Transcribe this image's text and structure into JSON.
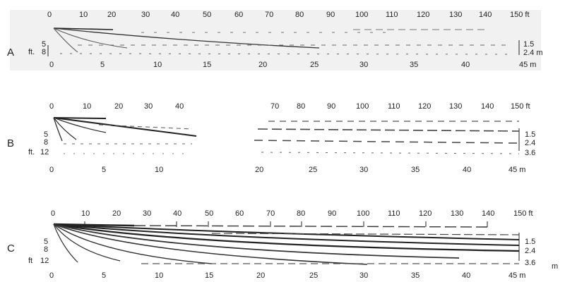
{
  "panels": [
    {
      "label": "A",
      "ft_ticks": [
        "0",
        "10",
        "20",
        "30",
        "40",
        "50",
        "60",
        "70",
        "80",
        "90",
        "100",
        "110",
        "120",
        "130",
        "140",
        "150 ft"
      ],
      "m_ticks": [
        "0",
        "5",
        "10",
        "15",
        "20",
        "25",
        "30",
        "35",
        "40",
        "45 m"
      ],
      "depth_ft": [
        "5",
        "8"
      ],
      "depth_ft_unit": "ft.",
      "depth_m": [
        "1.5",
        "2.4 m"
      ],
      "extent_m": 25,
      "depths_m": [
        1.5,
        2.4
      ]
    },
    {
      "label": "B",
      "ft_ticks": [
        "0",
        "10",
        "20",
        "30",
        "40",
        "70",
        "80",
        "90",
        "100",
        "110",
        "120",
        "130",
        "140",
        "150 ft"
      ],
      "m_ticks": [
        "0",
        "5",
        "10",
        "20",
        "25",
        "30",
        "35",
        "40",
        "45 m"
      ],
      "depth_ft": [
        "5",
        "8",
        "12"
      ],
      "depth_ft_unit": "ft.",
      "depth_m": [
        "1.5",
        "2.4",
        "3.6"
      ],
      "extent_m": 14,
      "depths_m": [
        1.5,
        2.4,
        3.6
      ]
    },
    {
      "label": "C",
      "ft_ticks": [
        "0",
        "10",
        "20",
        "30",
        "40",
        "50",
        "60",
        "70",
        "80",
        "90",
        "100",
        "110",
        "120",
        "130",
        "140",
        "150 ft"
      ],
      "m_ticks": [
        "0",
        "5",
        "10",
        "15",
        "20",
        "25",
        "30",
        "35",
        "40",
        "45 m"
      ],
      "depth_ft": [
        "5",
        "8",
        "12"
      ],
      "depth_ft_unit": "ft",
      "depth_m": [
        "1.5",
        "2.4",
        "3.6"
      ],
      "depth_m_unit": "m",
      "extent_m": 45,
      "depths_m": [
        1.5,
        2.4,
        3.6
      ]
    }
  ]
}
